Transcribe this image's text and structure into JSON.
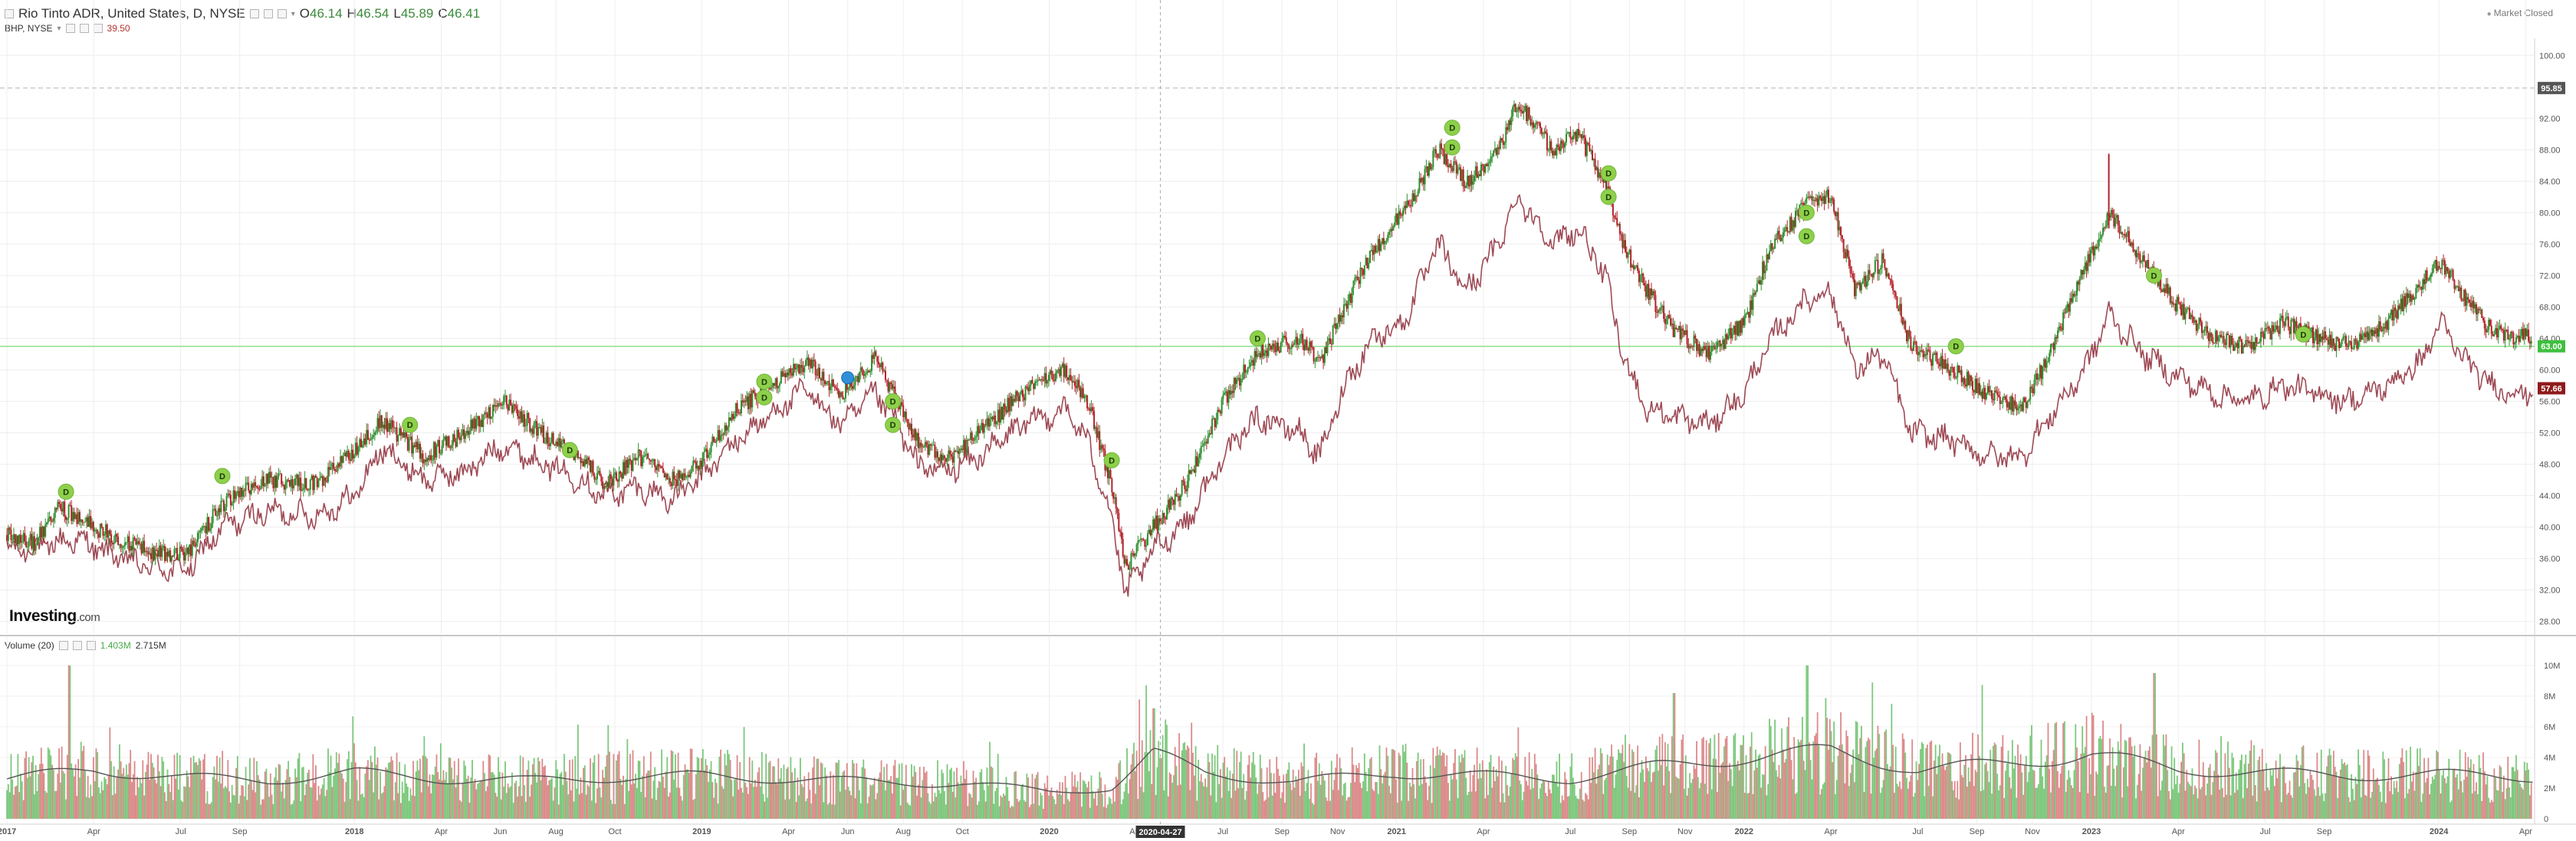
{
  "header": {
    "instrument": "Rio Tinto ADR, United States, D, NYSE",
    "open_label": "O",
    "open": "46.14",
    "high_label": "H",
    "high": "46.54",
    "low_label": "L",
    "low": "45.89",
    "close_label": "C",
    "close": "46.41",
    "compare_symbol": "BHP, NYSE",
    "compare_value": "39.50",
    "market_status": "Market Closed"
  },
  "volume_header": {
    "label": "Volume (20)",
    "value": "1.403M",
    "ma_value": "2.715M"
  },
  "logo": {
    "brand": "Investing",
    "suffix": ".com"
  },
  "crosshair": {
    "date_label": "2020-04-27"
  },
  "price_badges": {
    "dashed_high": "95.85",
    "green_line": "63.00",
    "last_price": "57.66"
  },
  "colors": {
    "up": "#2f8f2f",
    "down": "#b3222a",
    "compare_line": "#9e4a55",
    "vol_up": "#7dc87d",
    "vol_down": "#dc8a8a",
    "vol_ma": "#555555",
    "badge_green": "#3fbf3f",
    "badge_red": "#8f1a1a",
    "dividend_marker": "#8ed04a",
    "split_marker": "#2f8fd8"
  },
  "chart_data": [
    {
      "type": "candlestick",
      "name": "Rio Tinto ADR",
      "y_axis_ticks": [
        28.0,
        32.0,
        36.0,
        40.0,
        44.0,
        48.0,
        52.0,
        56.0,
        60.0,
        64.0,
        68.0,
        72.0,
        76.0,
        80.0,
        84.0,
        88.0,
        92.0,
        100.0
      ],
      "ylim": [
        26.5,
        101
      ],
      "x_axis_labels": [
        "2017",
        "Apr",
        "Jul",
        "Sep",
        "2018",
        "Apr",
        "Jun",
        "Aug",
        "Oct",
        "2019",
        "Apr",
        "Jun",
        "Aug",
        "Oct",
        "2020",
        "Apr",
        "Jul",
        "Sep",
        "Nov",
        "2021",
        "Apr",
        "Jul",
        "Sep",
        "Nov",
        "2022",
        "Apr",
        "Jul",
        "Sep",
        "Nov",
        "2023",
        "Apr",
        "Jul",
        "Sep",
        "2024",
        "Apr"
      ],
      "x_domain": [
        2016.98,
        2024.28
      ],
      "series_path": [
        [
          2017.0,
          39.0
        ],
        [
          2017.08,
          38.0
        ],
        [
          2017.15,
          42.5
        ],
        [
          2017.25,
          40.0
        ],
        [
          2017.4,
          37.0
        ],
        [
          2017.52,
          36.5
        ],
        [
          2017.62,
          43.0
        ],
        [
          2017.75,
          46.0
        ],
        [
          2017.9,
          45.5
        ],
        [
          2018.0,
          50.0
        ],
        [
          2018.08,
          53.5
        ],
        [
          2018.2,
          49.0
        ],
        [
          2018.32,
          52.0
        ],
        [
          2018.43,
          56.0
        ],
        [
          2018.55,
          51.5
        ],
        [
          2018.65,
          49.0
        ],
        [
          2018.72,
          45.5
        ],
        [
          2018.82,
          49.0
        ],
        [
          2018.92,
          46.0
        ],
        [
          2019.0,
          48.5
        ],
        [
          2019.1,
          55.0
        ],
        [
          2019.22,
          58.5
        ],
        [
          2019.3,
          61.0
        ],
        [
          2019.4,
          57.0
        ],
        [
          2019.5,
          61.5
        ],
        [
          2019.55,
          57.0
        ],
        [
          2019.62,
          51.0
        ],
        [
          2019.7,
          48.5
        ],
        [
          2019.8,
          52.0
        ],
        [
          2019.92,
          57.0
        ],
        [
          2020.05,
          60.0
        ],
        [
          2020.12,
          55.0
        ],
        [
          2020.18,
          45.0
        ],
        [
          2020.22,
          35.0
        ],
        [
          2020.3,
          40.0
        ],
        [
          2020.4,
          46.0
        ],
        [
          2020.5,
          56.0
        ],
        [
          2020.6,
          62.0
        ],
        [
          2020.72,
          64.0
        ],
        [
          2020.78,
          61.0
        ],
        [
          2020.85,
          68.0
        ],
        [
          2020.93,
          75.0
        ],
        [
          2021.02,
          80.0
        ],
        [
          2021.12,
          88.0
        ],
        [
          2021.2,
          84.0
        ],
        [
          2021.28,
          87.0
        ],
        [
          2021.35,
          94.0
        ],
        [
          2021.45,
          88.0
        ],
        [
          2021.52,
          90.0
        ],
        [
          2021.6,
          84.0
        ],
        [
          2021.65,
          76.0
        ],
        [
          2021.72,
          70.0
        ],
        [
          2021.8,
          65.0
        ],
        [
          2021.9,
          62.0
        ],
        [
          2022.0,
          66.0
        ],
        [
          2022.08,
          76.0
        ],
        [
          2022.18,
          81.0
        ],
        [
          2022.25,
          82.0
        ],
        [
          2022.32,
          70.0
        ],
        [
          2022.4,
          74.0
        ],
        [
          2022.48,
          63.0
        ],
        [
          2022.6,
          60.0
        ],
        [
          2022.7,
          57.0
        ],
        [
          2022.8,
          55.0
        ],
        [
          2022.88,
          62.0
        ],
        [
          2022.98,
          73.0
        ],
        [
          2023.05,
          80.0
        ],
        [
          2023.15,
          74.0
        ],
        [
          2023.25,
          68.0
        ],
        [
          2023.35,
          64.0
        ],
        [
          2023.45,
          63.0
        ],
        [
          2023.55,
          66.0
        ],
        [
          2023.65,
          64.0
        ],
        [
          2023.75,
          63.0
        ],
        [
          2023.85,
          66.0
        ],
        [
          2023.95,
          71.0
        ],
        [
          2024.0,
          74.0
        ],
        [
          2024.08,
          69.0
        ],
        [
          2024.15,
          65.0
        ],
        [
          2024.22,
          64.0
        ],
        [
          2024.27,
          64.5
        ]
      ],
      "spikes": [
        {
          "x": 2023.05,
          "high": 87.5
        }
      ],
      "dividend_markers": [
        {
          "x": 2017.17,
          "y": 44.5,
          "label": "D"
        },
        {
          "x": 2017.62,
          "y": 46.5,
          "label": "D"
        },
        {
          "x": 2018.16,
          "y": 53.0,
          "label": "D"
        },
        {
          "x": 2018.62,
          "y": 49.8,
          "label": "D"
        },
        {
          "x": 2019.18,
          "y": 58.5,
          "label": "D"
        },
        {
          "x": 2019.18,
          "y": 56.5,
          "label": "D"
        },
        {
          "x": 2019.55,
          "y": 56.0,
          "label": "D"
        },
        {
          "x": 2019.55,
          "y": 53.0,
          "label": "D"
        },
        {
          "x": 2020.18,
          "y": 48.5,
          "label": "D"
        },
        {
          "x": 2020.6,
          "y": 64.0,
          "label": "D"
        },
        {
          "x": 2021.16,
          "y": 90.8,
          "label": "D"
        },
        {
          "x": 2021.16,
          "y": 88.3,
          "label": "D"
        },
        {
          "x": 2021.61,
          "y": 85.0,
          "label": "D"
        },
        {
          "x": 2021.61,
          "y": 82.0,
          "label": "D"
        },
        {
          "x": 2022.18,
          "y": 80.0,
          "label": "D"
        },
        {
          "x": 2022.18,
          "y": 77.0,
          "label": "D"
        },
        {
          "x": 2022.61,
          "y": 63.0,
          "label": "D"
        },
        {
          "x": 2023.18,
          "y": 72.0,
          "label": "D"
        },
        {
          "x": 2023.61,
          "y": 64.5,
          "label": "D"
        }
      ],
      "split_markers": [
        {
          "x": 2019.42,
          "y": 59.0
        }
      ],
      "horizontal_lines": [
        {
          "y": 95.85,
          "style": "dashed"
        },
        {
          "y": 63.0,
          "style": "solid-green"
        }
      ],
      "last_price_badge": 57.66
    },
    {
      "type": "line",
      "name": "BHP, NYSE",
      "series_path": [
        [
          2017.0,
          37.0
        ],
        [
          2017.1,
          37.5
        ],
        [
          2017.2,
          38.5
        ],
        [
          2017.3,
          36.5
        ],
        [
          2017.4,
          35.0
        ],
        [
          2017.52,
          34.5
        ],
        [
          2017.62,
          40.0
        ],
        [
          2017.75,
          42.0
        ],
        [
          2017.9,
          41.5
        ],
        [
          2018.0,
          44.0
        ],
        [
          2018.08,
          50.0
        ],
        [
          2018.2,
          46.0
        ],
        [
          2018.32,
          47.0
        ],
        [
          2018.43,
          50.5
        ],
        [
          2018.55,
          48.0
        ],
        [
          2018.65,
          46.0
        ],
        [
          2018.72,
          44.0
        ],
        [
          2018.82,
          45.0
        ],
        [
          2018.92,
          43.5
        ],
        [
          2019.0,
          46.5
        ],
        [
          2019.1,
          51.0
        ],
        [
          2019.22,
          55.0
        ],
        [
          2019.3,
          57.5
        ],
        [
          2019.4,
          53.0
        ],
        [
          2019.5,
          57.0
        ],
        [
          2019.55,
          54.0
        ],
        [
          2019.62,
          48.0
        ],
        [
          2019.7,
          47.0
        ],
        [
          2019.8,
          49.0
        ],
        [
          2019.92,
          53.0
        ],
        [
          2020.05,
          55.0
        ],
        [
          2020.12,
          50.0
        ],
        [
          2020.18,
          41.0
        ],
        [
          2020.22,
          31.5
        ],
        [
          2020.3,
          37.0
        ],
        [
          2020.4,
          41.0
        ],
        [
          2020.5,
          49.0
        ],
        [
          2020.6,
          54.0
        ],
        [
          2020.72,
          52.0
        ],
        [
          2020.78,
          49.0
        ],
        [
          2020.85,
          58.0
        ],
        [
          2020.93,
          64.0
        ],
        [
          2021.02,
          66.0
        ],
        [
          2021.12,
          76.0
        ],
        [
          2021.2,
          70.0
        ],
        [
          2021.28,
          75.0
        ],
        [
          2021.35,
          82.0
        ],
        [
          2021.45,
          76.0
        ],
        [
          2021.52,
          78.0
        ],
        [
          2021.6,
          72.0
        ],
        [
          2021.65,
          62.0
        ],
        [
          2021.72,
          55.0
        ],
        [
          2021.8,
          54.0
        ],
        [
          2021.9,
          53.0
        ],
        [
          2022.0,
          57.0
        ],
        [
          2022.08,
          64.0
        ],
        [
          2022.18,
          69.0
        ],
        [
          2022.25,
          70.0
        ],
        [
          2022.32,
          60.0
        ],
        [
          2022.4,
          62.0
        ],
        [
          2022.48,
          52.0
        ],
        [
          2022.6,
          51.0
        ],
        [
          2022.7,
          49.0
        ],
        [
          2022.8,
          49.0
        ],
        [
          2022.88,
          54.0
        ],
        [
          2022.98,
          60.0
        ],
        [
          2023.05,
          67.0
        ],
        [
          2023.15,
          62.0
        ],
        [
          2023.25,
          59.0
        ],
        [
          2023.35,
          57.0
        ],
        [
          2023.45,
          56.0
        ],
        [
          2023.55,
          58.0
        ],
        [
          2023.65,
          57.0
        ],
        [
          2023.75,
          56.0
        ],
        [
          2023.85,
          58.0
        ],
        [
          2023.95,
          61.0
        ],
        [
          2024.0,
          66.0
        ],
        [
          2024.08,
          61.0
        ],
        [
          2024.15,
          58.0
        ],
        [
          2024.22,
          57.0
        ],
        [
          2024.27,
          57.5
        ]
      ]
    },
    {
      "type": "bar",
      "name": "Volume (20)",
      "y_axis_ticks": [
        "0",
        "2M",
        "4M",
        "6M",
        "8M",
        "10M"
      ],
      "ylim": [
        0,
        11000000
      ],
      "baseline_volume_path": [
        [
          2017.0,
          2600000
        ],
        [
          2017.25,
          3200000
        ],
        [
          2017.5,
          2700000
        ],
        [
          2017.75,
          2500000
        ],
        [
          2018.0,
          3000000
        ],
        [
          2018.25,
          2600000
        ],
        [
          2018.5,
          2500000
        ],
        [
          2018.75,
          2700000
        ],
        [
          2019.0,
          2800000
        ],
        [
          2019.25,
          2600000
        ],
        [
          2019.5,
          2400000
        ],
        [
          2019.75,
          2300000
        ],
        [
          2020.0,
          1800000
        ],
        [
          2020.18,
          2000000
        ],
        [
          2020.3,
          4200000
        ],
        [
          2020.45,
          3000000
        ],
        [
          2020.7,
          2400000
        ],
        [
          2021.0,
          3000000
        ],
        [
          2021.25,
          2800000
        ],
        [
          2021.5,
          2600000
        ],
        [
          2021.75,
          3400000
        ],
        [
          2022.0,
          4000000
        ],
        [
          2022.25,
          4400000
        ],
        [
          2022.5,
          3200000
        ],
        [
          2022.75,
          3600000
        ],
        [
          2023.0,
          4200000
        ],
        [
          2023.25,
          3200000
        ],
        [
          2023.5,
          3000000
        ],
        [
          2023.75,
          2800000
        ],
        [
          2024.0,
          2900000
        ],
        [
          2024.27,
          2715000
        ]
      ],
      "peaks": [
        [
          2017.18,
          10000000
        ],
        [
          2020.3,
          7200000
        ],
        [
          2021.8,
          8200000
        ],
        [
          2022.18,
          10000000
        ],
        [
          2023.18,
          9500000
        ]
      ]
    }
  ]
}
